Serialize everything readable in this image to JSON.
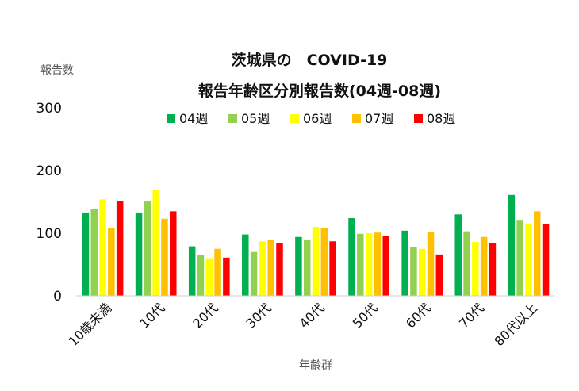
{
  "chart_data": {
    "type": "bar",
    "title_line1": "茨城県の　COVID-19",
    "title_line2": "報告年齢区分別報告数(04週-08週)",
    "ylabel": "報告数",
    "xlabel": "年齢群",
    "ylim": [
      0,
      300
    ],
    "yticks": [
      0,
      100,
      200,
      300
    ],
    "categories": [
      "10歳未満",
      "10代",
      "20代",
      "30代",
      "40代",
      "50代",
      "60代",
      "70代",
      "80代以上"
    ],
    "series": [
      {
        "name": "04週",
        "color": "#00b050",
        "values": [
          133,
          133,
          79,
          98,
          94,
          124,
          104,
          130,
          161
        ]
      },
      {
        "name": "05週",
        "color": "#92d050",
        "values": [
          139,
          151,
          65,
          70,
          90,
          99,
          78,
          103,
          120
        ]
      },
      {
        "name": "06週",
        "color": "#ffff00",
        "values": [
          154,
          169,
          60,
          87,
          110,
          100,
          75,
          86,
          115
        ]
      },
      {
        "name": "07週",
        "color": "#ffc000",
        "values": [
          108,
          123,
          75,
          89,
          108,
          101,
          102,
          94,
          135
        ]
      },
      {
        "name": "08週",
        "color": "#ff0000",
        "values": [
          151,
          135,
          61,
          84,
          87,
          95,
          66,
          84,
          115
        ]
      }
    ],
    "legend_position": "top",
    "grid": false
  }
}
